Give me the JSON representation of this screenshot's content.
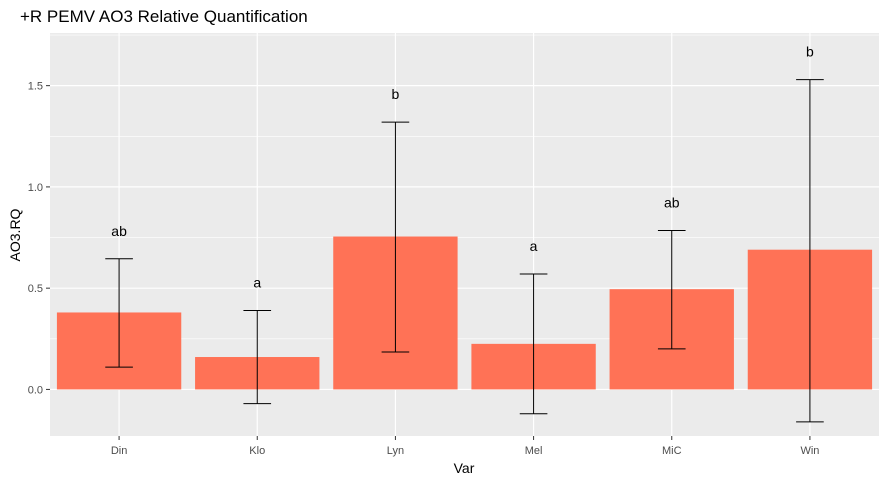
{
  "chart_data": {
    "type": "bar",
    "title": "+R PEMV AO3 Relative Quantification",
    "xlabel": "Var",
    "ylabel": "AO3.RQ",
    "categories": [
      "Din",
      "Klo",
      "Lyn",
      "Mel",
      "MiC",
      "Win"
    ],
    "values": [
      0.38,
      0.16,
      0.755,
      0.225,
      0.495,
      0.69
    ],
    "error_low": [
      0.11,
      -0.07,
      0.185,
      -0.12,
      0.2,
      -0.16
    ],
    "error_high": [
      0.645,
      0.39,
      1.32,
      0.57,
      0.785,
      1.53
    ],
    "significance_labels": [
      "ab",
      "a",
      "b",
      "a",
      "ab",
      "b"
    ],
    "ylim": [
      -0.23,
      1.76
    ],
    "yticks": [
      0.0,
      0.5,
      1.0,
      1.5
    ],
    "ytick_labels": [
      "0.0",
      "0.5",
      "1.0",
      "1.5"
    ],
    "grid": true,
    "colors": {
      "bar": "#ff7256",
      "panel": "#ebebeb",
      "grid": "#ffffff",
      "errorbar": "#000000"
    }
  }
}
